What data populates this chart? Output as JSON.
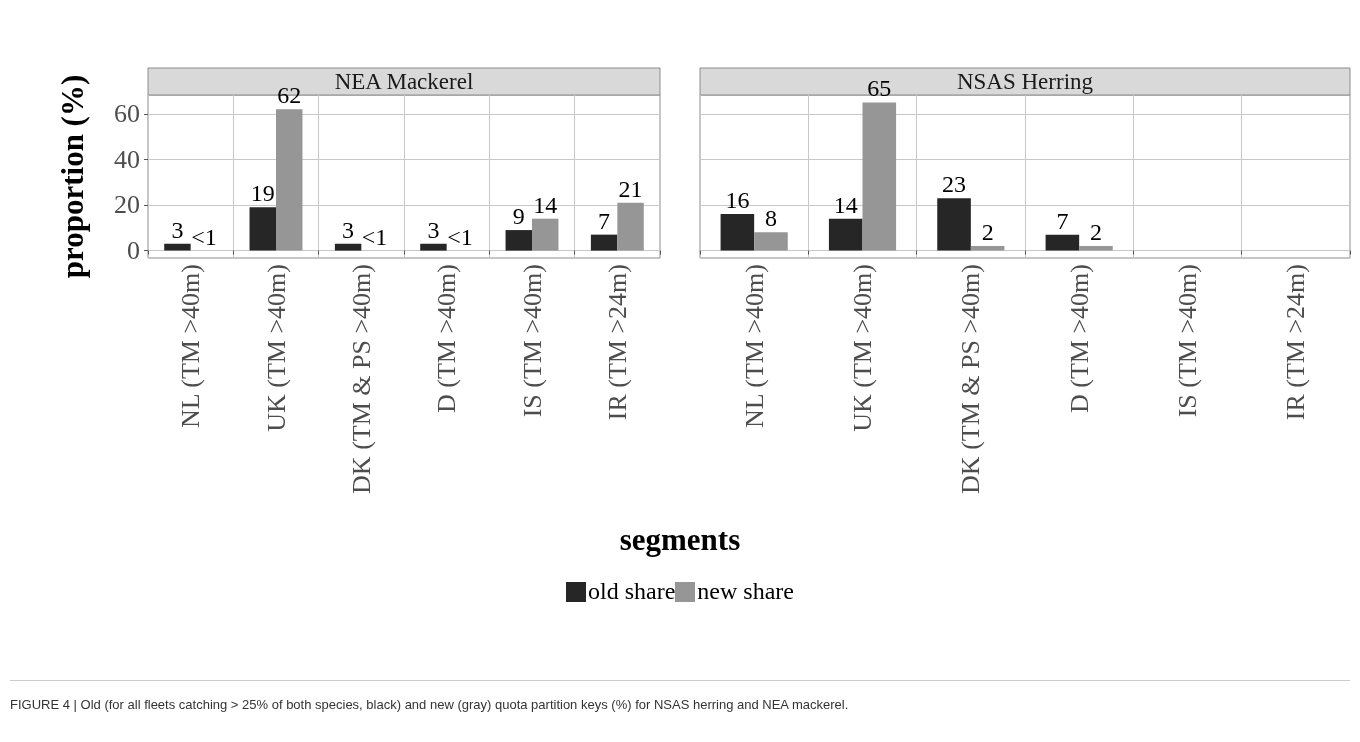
{
  "chart_data": [
    {
      "type": "bar",
      "title": "NEA Mackerel",
      "ylabel": "proportion (%)",
      "xlabel": "segments",
      "legend": "bottom",
      "annotations": [
        "FIGURE 4 | Old (for all fleets catching > 25% of both species, black) and new (gray) quota partition keys (%) for NSAS herring and NEA mackerel."
      ],
      "categories": [
        "NL (TM >40m)",
        "UK (TM >40m)",
        "DK (TM & PS >40m)",
        "D (TM >40m)",
        "IS (TM >40m)",
        "IR (TM >24m)"
      ],
      "series": [
        {
          "name": "old share",
          "color": "#262626",
          "values": [
            3,
            19,
            3,
            3,
            9,
            7
          ],
          "value_labels": [
            "3",
            "19",
            "3",
            "3",
            "9",
            "7"
          ]
        },
        {
          "name": "new share",
          "color": "#969696",
          "values": [
            0,
            62,
            0,
            0,
            14,
            21
          ],
          "value_labels": [
            "<1",
            "62",
            "<1",
            "<1",
            "14",
            "21"
          ]
        }
      ],
      "ylim": [
        -3.25,
        68.25
      ],
      "yticks": [
        0,
        20,
        40,
        60
      ],
      "grid": true
    },
    {
      "type": "bar",
      "title": "NSAS Herring",
      "tick_labels": "x",
      "data_labels": true,
      "categories": [
        "NL (TM >40m)",
        "UK (TM >40m)",
        "DK (TM & PS >40m)",
        "D (TM >40m)",
        "IS (TM >40m)",
        "IR (TM >24m)"
      ],
      "series": [
        {
          "color": "#262626",
          "values": [
            16,
            14,
            23,
            7,
            null,
            null
          ]
        },
        {
          "color": "#969696",
          "values": [
            8,
            65,
            2,
            2,
            null,
            null
          ]
        }
      ],
      "ylim": [
        -3.25,
        68.25
      ],
      "yticks": [
        0,
        20,
        40,
        60
      ],
      "grid": true
    }
  ]
}
